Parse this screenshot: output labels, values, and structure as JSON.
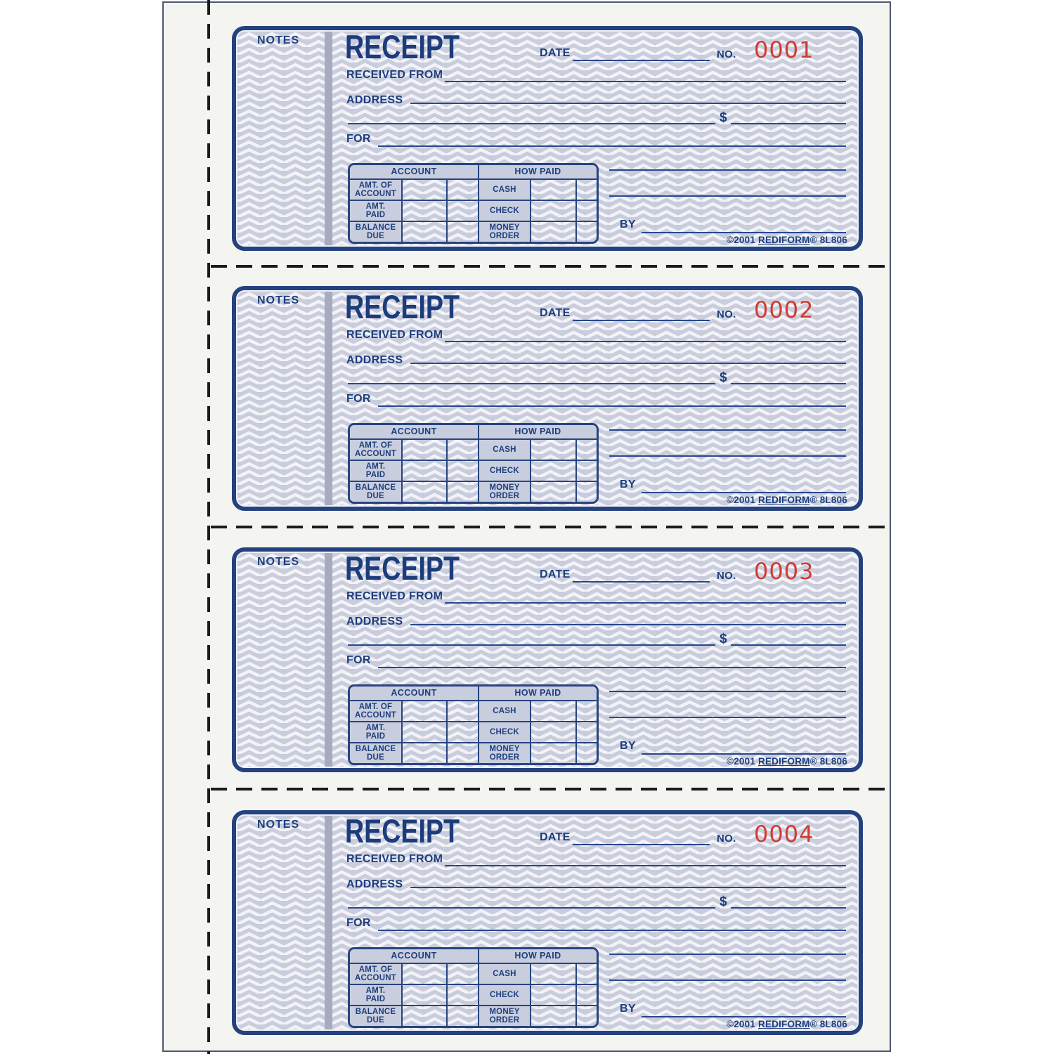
{
  "form": {
    "notes_label": "NOTES",
    "title": "RECEIPT",
    "date_label": "DATE",
    "no_label": "NO.",
    "received_from_label": "RECEIVED FROM",
    "address_label": "ADDRESS",
    "dollar_sign": "$",
    "for_label": "FOR",
    "by_label": "BY",
    "table": {
      "account_header": "ACCOUNT",
      "how_paid_header": "HOW PAID",
      "rows": [
        {
          "account_label": "AMT. OF\nACCOUNT",
          "how_paid_label": "CASH"
        },
        {
          "account_label": "AMT.\nPAID",
          "how_paid_label": "CHECK"
        },
        {
          "account_label": "BALANCE\nDUE",
          "how_paid_label": "MONEY\nORDER"
        }
      ]
    },
    "copyright_prefix": "©2001 ",
    "brand": "REDIFORM",
    "copyright_suffix": "® 8L806"
  },
  "receipts": [
    {
      "number": "0001"
    },
    {
      "number": "0002"
    },
    {
      "number": "0003"
    },
    {
      "number": "0004"
    }
  ],
  "colors": {
    "ink_navy": "#24427f",
    "number_red": "#d13b30",
    "pattern_base": "#c6cada",
    "pattern_stroke": "#f3f4f8",
    "shaded_cell": "#c9cede",
    "divider_gray": "#a6abbf",
    "sheet_bg": "#f4f4f1",
    "perforation_black": "#1b1b1b"
  }
}
